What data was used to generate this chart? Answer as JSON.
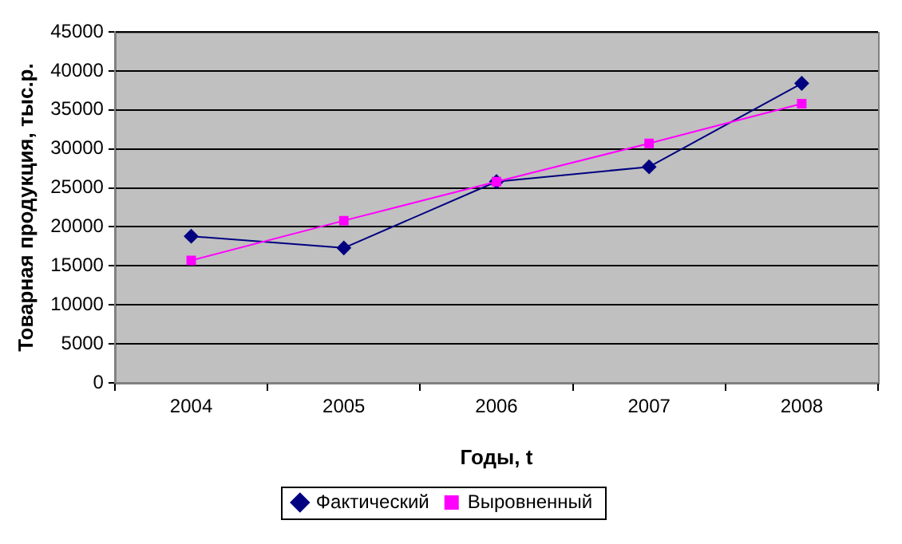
{
  "chart_data": {
    "type": "line",
    "xlabel": "Годы, t",
    "ylabel": "Товарная продукция, тыс.р.",
    "categories": [
      "2004",
      "2005",
      "2006",
      "2007",
      "2008"
    ],
    "series": [
      {
        "name": "Фактический",
        "color": "#000080",
        "marker": "diamond",
        "values": [
          18800,
          17300,
          25800,
          27700,
          38400
        ]
      },
      {
        "name": "Выровненный",
        "color": "#ff00ff",
        "marker": "square",
        "values": [
          15700,
          20800,
          25800,
          30700,
          35800
        ]
      }
    ],
    "ylim": [
      0,
      45000
    ],
    "yticks": [
      0,
      5000,
      10000,
      15000,
      20000,
      25000,
      30000,
      35000,
      40000,
      45000
    ],
    "grid": "y",
    "legend": "bottom"
  }
}
